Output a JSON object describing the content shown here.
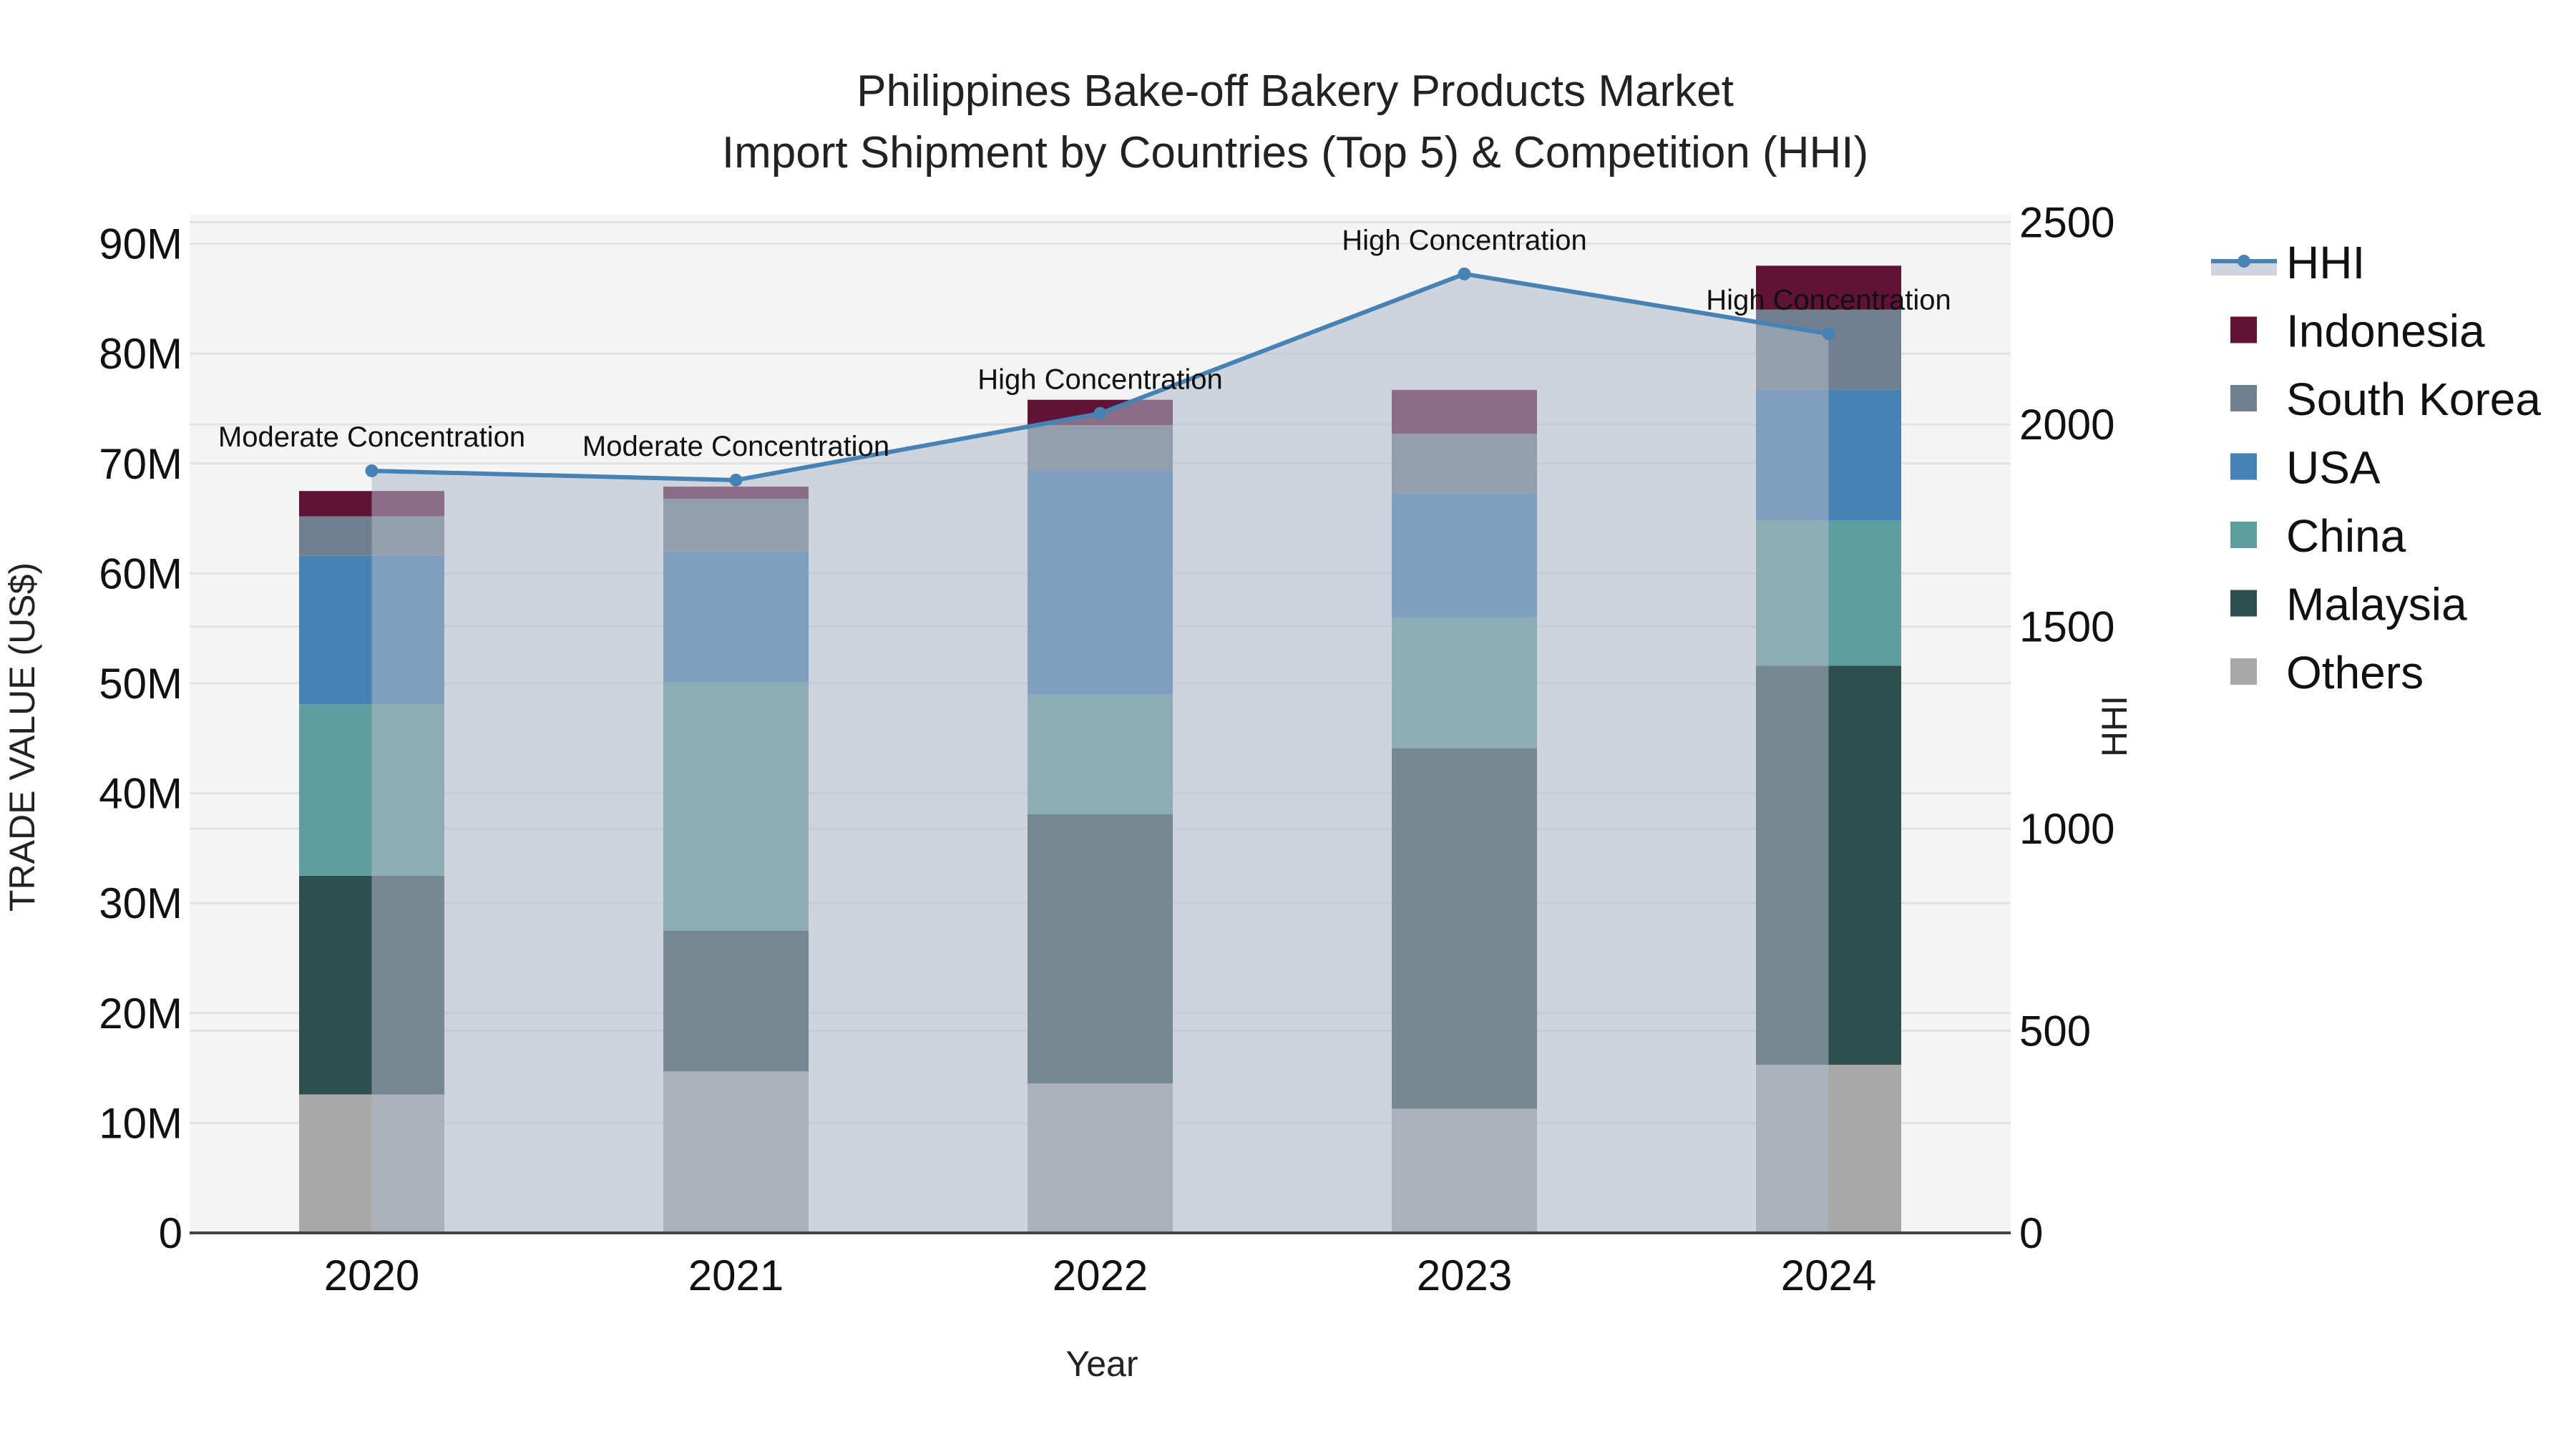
{
  "title_line1": "Philippines Bake-off Bakery Products Market",
  "title_line2": "Import Shipment by Countries (Top 5) & Competition (HHI)",
  "xaxis_title": "Year",
  "yaxis_title": "TRADE VALUE (US$)",
  "y2axis_title": "HHI",
  "colors": {
    "Indonesia": "#611336",
    "South Korea": "#708090",
    "USA": "#4682B4",
    "China": "#5F9EA0",
    "Malaysia": "#2F4F4F",
    "Others": "#A9A9A9",
    "HHI_line": "#4682B4",
    "HHI_fill": "#B0B8C8",
    "plot_bg": "#F4F4F4",
    "grid": "#E2E2E2"
  },
  "legend": [
    "HHI",
    "Indonesia",
    "South Korea",
    "USA",
    "China",
    "Malaysia",
    "Others"
  ],
  "chart_data": {
    "type": "bar",
    "subtype": "stacked bar + line (secondary axis)",
    "title": "Philippines Bake-off Bakery Products Market Import Shipment by Countries (Top 5) & Competition (HHI)",
    "xlabel": "Year",
    "ylabel": "TRADE VALUE (US$)",
    "y2label": "HHI",
    "categories": [
      "2020",
      "2021",
      "2022",
      "2023",
      "2024"
    ],
    "ylim": [
      0,
      92000000
    ],
    "yticks": [
      "0",
      "10M",
      "20M",
      "30M",
      "40M",
      "50M",
      "60M",
      "70M",
      "80M",
      "90M"
    ],
    "y2lim": [
      0,
      2550
    ],
    "y2ticks": [
      "0",
      "500",
      "1000",
      "1500",
      "2000",
      "2500"
    ],
    "legend_position": "right",
    "grid": true,
    "series": [
      {
        "name": "Others",
        "values": [
          12600000,
          14700000,
          13600000,
          11300000,
          15300000
        ]
      },
      {
        "name": "Malaysia",
        "values": [
          19900000,
          12800000,
          24500000,
          32800000,
          36300000
        ]
      },
      {
        "name": "China",
        "values": [
          15600000,
          22600000,
          10900000,
          11900000,
          13200000
        ]
      },
      {
        "name": "USA",
        "values": [
          13500000,
          11900000,
          20400000,
          11300000,
          11900000
        ]
      },
      {
        "name": "South Korea",
        "values": [
          3600000,
          4800000,
          4100000,
          5400000,
          7300000
        ]
      },
      {
        "name": "Indonesia",
        "values": [
          2300000,
          1100000,
          2300000,
          4000000,
          4000000
        ]
      }
    ],
    "line_series": {
      "name": "HHI",
      "axis": "y2",
      "values": [
        1885,
        1862,
        2027,
        2372,
        2224
      ],
      "annotations": [
        "Moderate Concentration",
        "Moderate Concentration",
        "High Concentration",
        "High Concentration",
        "High Concentration"
      ]
    }
  }
}
